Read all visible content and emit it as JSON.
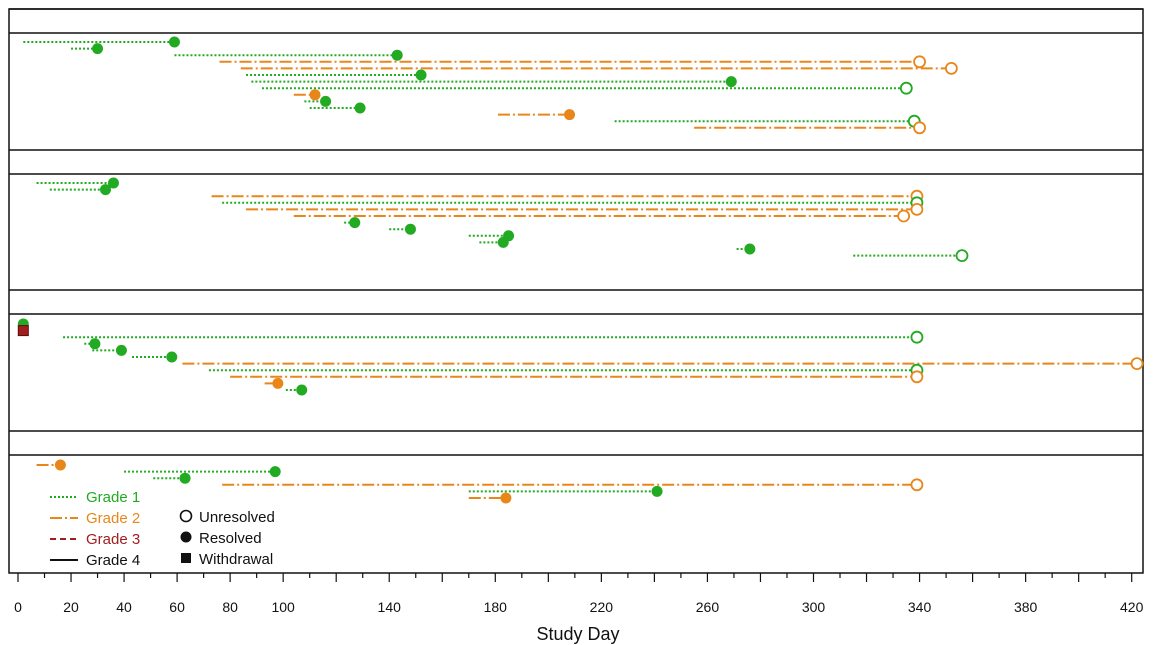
{
  "chart_data": {
    "type": "swimmer-timeline",
    "xlabel": "Study Day",
    "x_ticks": [
      0,
      20,
      40,
      60,
      80,
      100,
      140,
      180,
      220,
      260,
      300,
      340,
      380,
      420
    ],
    "xlim": [
      0,
      422
    ],
    "grade_styles": [
      {
        "grade": "Grade 1",
        "color": "#22aa22",
        "dash": "2,2"
      },
      {
        "grade": "Grade 2",
        "color": "#e8861a",
        "dash": "12,3,2,3"
      },
      {
        "grade": "Grade 3",
        "color": "#a01e1e",
        "dash": "6,4"
      },
      {
        "grade": "Grade 4",
        "color": "#111111",
        "dash": ""
      }
    ],
    "end_markers": [
      {
        "label": "Unresolved",
        "shape": "open-circle"
      },
      {
        "label": "Resolved",
        "shape": "filled-circle"
      },
      {
        "label": "Withdrawal",
        "shape": "filled-square"
      }
    ],
    "panels": [
      {
        "events": [
          {
            "start": 2,
            "end": 59,
            "grade": 1,
            "resolved": true
          },
          {
            "start": 20,
            "end": 30,
            "grade": 1,
            "resolved": true
          },
          {
            "start": 59,
            "end": 143,
            "grade": 1,
            "resolved": true
          },
          {
            "start": 76,
            "end": 340,
            "grade": 2,
            "resolved": false
          },
          {
            "start": 84,
            "end": 352,
            "grade": 2,
            "resolved": false
          },
          {
            "start": 86,
            "end": 152,
            "grade": 1,
            "resolved": true
          },
          {
            "start": 88,
            "end": 269,
            "grade": 1,
            "resolved": true
          },
          {
            "start": 92,
            "end": 335,
            "grade": 1,
            "resolved": false
          },
          {
            "start": 104,
            "end": 112,
            "grade": 2,
            "resolved": true
          },
          {
            "start": 108,
            "end": 116,
            "grade": 1,
            "resolved": true
          },
          {
            "start": 110,
            "end": 129,
            "grade": 1,
            "resolved": true
          },
          {
            "start": 181,
            "end": 208,
            "grade": 2,
            "resolved": true
          },
          {
            "start": 225,
            "end": 338,
            "grade": 1,
            "resolved": false
          },
          {
            "start": 255,
            "end": 340,
            "grade": 2,
            "resolved": false
          }
        ]
      },
      {
        "events": [
          {
            "start": 7,
            "end": 36,
            "grade": 1,
            "resolved": true
          },
          {
            "start": 12,
            "end": 33,
            "grade": 1,
            "resolved": true
          },
          {
            "start": 73,
            "end": 339,
            "grade": 2,
            "resolved": false
          },
          {
            "start": 77,
            "end": 339,
            "grade": 1,
            "resolved": false
          },
          {
            "start": 86,
            "end": 339,
            "grade": 2,
            "resolved": false
          },
          {
            "start": 104,
            "end": 334,
            "grade": 2,
            "resolved": false
          },
          {
            "start": 123,
            "end": 127,
            "grade": 1,
            "resolved": true
          },
          {
            "start": 140,
            "end": 148,
            "grade": 1,
            "resolved": true
          },
          {
            "start": 170,
            "end": 185,
            "grade": 1,
            "resolved": true
          },
          {
            "start": 174,
            "end": 183,
            "grade": 1,
            "resolved": true
          },
          {
            "start": 271,
            "end": 276,
            "grade": 1,
            "resolved": true
          },
          {
            "start": 315,
            "end": 356,
            "grade": 1,
            "resolved": false
          }
        ]
      },
      {
        "events": [
          {
            "start": 1,
            "end": 2,
            "grade": 1,
            "resolved": true
          },
          {
            "start": 1,
            "end": 2,
            "grade": 3,
            "withdrawal": true
          },
          {
            "start": 17,
            "end": 339,
            "grade": 1,
            "resolved": false
          },
          {
            "start": 25,
            "end": 29,
            "grade": 1,
            "resolved": true
          },
          {
            "start": 28,
            "end": 39,
            "grade": 1,
            "resolved": true
          },
          {
            "start": 43,
            "end": 58,
            "grade": 1,
            "resolved": true
          },
          {
            "start": 62,
            "end": 422,
            "grade": 2,
            "resolved": false
          },
          {
            "start": 72,
            "end": 339,
            "grade": 1,
            "resolved": false
          },
          {
            "start": 80,
            "end": 339,
            "grade": 2,
            "resolved": false
          },
          {
            "start": 93,
            "end": 98,
            "grade": 2,
            "resolved": true
          },
          {
            "start": 101,
            "end": 107,
            "grade": 1,
            "resolved": true
          },
          {
            "start": 0,
            "end": 0,
            "grade": 0,
            "spacer": true
          }
        ]
      },
      {
        "events": [
          {
            "start": 7,
            "end": 16,
            "grade": 2,
            "resolved": true
          },
          {
            "start": 40,
            "end": 97,
            "grade": 1,
            "resolved": true
          },
          {
            "start": 51,
            "end": 63,
            "grade": 1,
            "resolved": true
          },
          {
            "start": 77,
            "end": 339,
            "grade": 2,
            "resolved": false
          },
          {
            "start": 170,
            "end": 241,
            "grade": 1,
            "resolved": true
          },
          {
            "start": 170,
            "end": 184,
            "grade": 2,
            "resolved": true
          }
        ]
      }
    ]
  }
}
